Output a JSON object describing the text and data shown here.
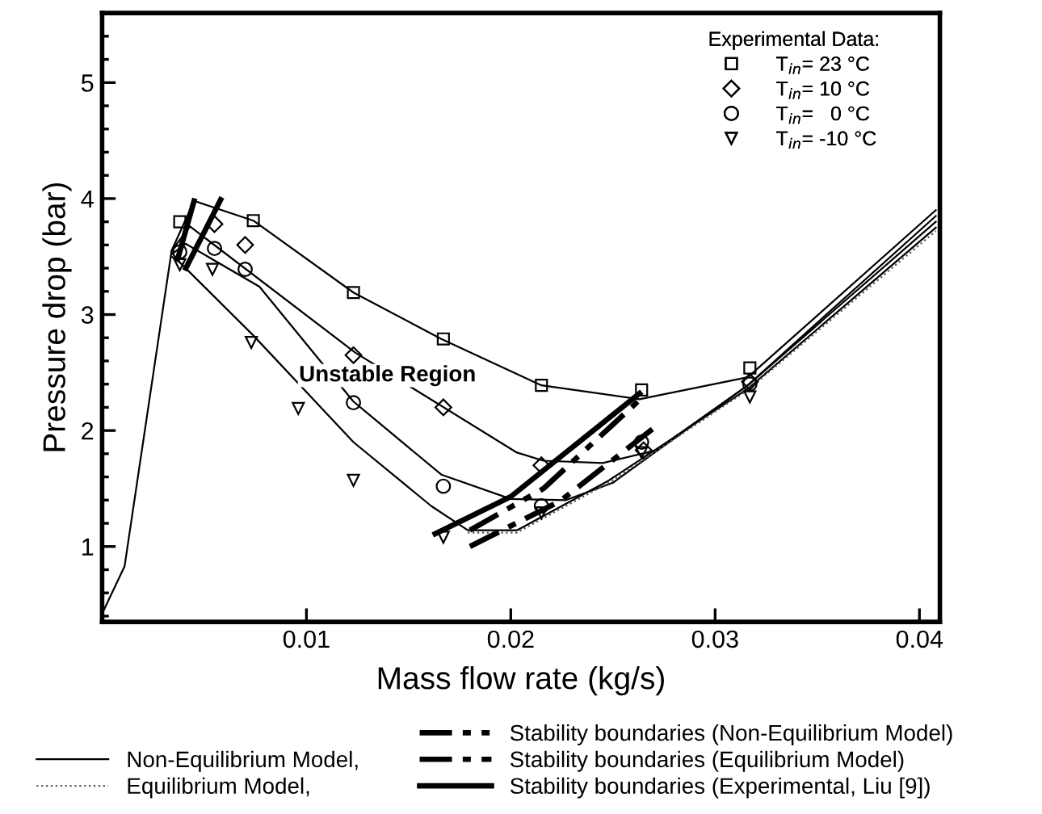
{
  "chart_data": {
    "type": "line",
    "xlabel": "Mass flow rate (kg/s)",
    "ylabel": "Pressure drop (bar)",
    "legend_title": "Experimental Data:",
    "xlim": [
      0,
      0.041
    ],
    "ylim": [
      0.35,
      5.6
    ],
    "xticks": [
      0.01,
      0.02,
      0.03,
      0.04
    ],
    "yticks": [
      {
        "value": 0.4,
        "label": null
      },
      {
        "value": 0.6,
        "label": null
      },
      {
        "value": 0.8,
        "label": null
      },
      1,
      {
        "value": 1.2,
        "label": null
      },
      {
        "value": 1.4,
        "label": null
      },
      {
        "value": 1.6,
        "label": null
      },
      {
        "value": 1.8,
        "label": null
      },
      2,
      {
        "value": 2.2,
        "label": null
      },
      {
        "value": 2.4,
        "label": null
      },
      {
        "value": 2.6,
        "label": null
      },
      {
        "value": 2.8,
        "label": null
      },
      3,
      {
        "value": 3.2,
        "label": null
      },
      {
        "value": 3.4,
        "label": null
      },
      {
        "value": 3.6,
        "label": null
      },
      {
        "value": 3.8,
        "label": null
      },
      4,
      {
        "value": 4.2,
        "label": null
      },
      {
        "value": 4.4,
        "label": null
      },
      {
        "value": 4.6,
        "label": null
      },
      {
        "value": 4.8,
        "label": null
      },
      5,
      {
        "value": 5.2,
        "label": null
      },
      {
        "value": 5.4,
        "label": null
      }
    ],
    "grid": false,
    "legend": "bottom",
    "annotations": [
      "Unstable Region"
    ],
    "series": [
      {
        "name": "Non-Equilibrium Model,",
        "type": "line",
        "line_style": "solid",
        "color": "#000000",
        "x": [
          0,
          0.0011,
          0.0034,
          0.0045,
          0.0074,
          0.0123,
          0.0166,
          0.0215,
          0.0263,
          0.0316,
          0.0408
        ],
        "values": [
          0.42,
          0.83,
          3.55,
          3.98,
          3.81,
          3.19,
          2.79,
          2.39,
          2.27,
          2.46,
          3.9
        ]
      },
      {
        "type": "line",
        "line_style": "solid",
        "color": "#000000",
        "x": [
          0.0034,
          0.0043,
          0.0124,
          0.0203,
          0.0216,
          0.0245,
          0.0271,
          0.0316,
          0.0408
        ],
        "values": [
          3.55,
          3.76,
          2.67,
          1.81,
          1.74,
          1.72,
          1.83,
          2.39,
          3.85
        ]
      },
      {
        "type": "line",
        "line_style": "solid",
        "color": "#000000",
        "x": [
          0.0034,
          0.0041,
          0.0077,
          0.0123,
          0.0166,
          0.02,
          0.0227,
          0.025,
          0.0316,
          0.0408
        ],
        "values": [
          3.52,
          3.61,
          3.24,
          2.25,
          1.62,
          1.41,
          1.4,
          1.55,
          2.39,
          3.8
        ]
      },
      {
        "type": "line",
        "line_style": "solid",
        "color": "#000000",
        "x": [
          0.0034,
          0.0038,
          0.0074,
          0.0123,
          0.0161,
          0.0179,
          0.0203,
          0.0248,
          0.0316,
          0.0408
        ],
        "values": [
          3.5,
          3.45,
          2.82,
          1.9,
          1.35,
          1.14,
          1.14,
          1.57,
          2.36,
          3.75
        ]
      },
      {
        "name": "Equilibrium Model,",
        "type": "line",
        "line_style": "dotted",
        "color": "#555555",
        "x": [
          0.0179,
          0.0203,
          0.0248,
          0.0316,
          0.0408
        ],
        "values": [
          1.12,
          1.12,
          1.55,
          2.35,
          3.72
        ]
      },
      {
        "name": "Stability boundaries (Non-Equilibrium Model)",
        "type": "line",
        "line_style": "dashdotdot",
        "color": "#000000",
        "x": [
          0.018,
          0.0216,
          0.0264
        ],
        "values": [
          1.14,
          1.5,
          2.28
        ]
      },
      {
        "name": "Stability boundaries (Equilibrium Model)",
        "type": "line",
        "line_style": "dashdot",
        "color": "#000000",
        "x": [
          0.018,
          0.0224,
          0.0272
        ],
        "values": [
          1.0,
          1.39,
          2.05
        ]
      },
      {
        "name": "Stability boundaries (Experimental, Liu [9])",
        "type": "line",
        "line_style": "solid",
        "color": "#000000",
        "x": [
          0.0037,
          0.0045,
          null,
          0.0041,
          0.0058,
          null,
          0.0163,
          0.02,
          0.0263
        ],
        "values": [
          3.48,
          3.98,
          null,
          3.4,
          3.99,
          null,
          1.11,
          1.43,
          2.32
        ]
      },
      {
        "name": "T$_{in}$= 23 °C",
        "type": "scatter",
        "marker": "square",
        "color": "#000000",
        "x": [
          0.0038,
          0.0074,
          0.0123,
          0.0167,
          0.0215,
          0.0264,
          0.0317
        ],
        "values": [
          3.8,
          3.81,
          3.19,
          2.79,
          2.39,
          2.35,
          2.54
        ]
      },
      {
        "name": "T$_{in}$= 10 °C",
        "type": "scatter",
        "marker": "diamond",
        "color": "#000000",
        "x": [
          0.0055,
          0.007,
          0.0123,
          0.0167,
          0.0215,
          0.0265,
          0.0317
        ],
        "values": [
          3.78,
          3.6,
          2.65,
          2.2,
          1.7,
          1.83,
          2.42
        ]
      },
      {
        "name": "T$_{in}$=   0 °C",
        "type": "scatter",
        "marker": "circle",
        "color": "#000000",
        "x": [
          0.0038,
          0.0055,
          0.007,
          0.0123,
          0.0167,
          0.0215,
          0.0264,
          0.0317
        ],
        "values": [
          3.54,
          3.57,
          3.39,
          2.24,
          1.52,
          1.35,
          1.9,
          2.4
        ]
      },
      {
        "name": "T$_{in}$= -10 °C",
        "type": "scatter",
        "marker": "triangle",
        "color": "#000000",
        "x": [
          0.0038,
          0.0054,
          0.0073,
          0.0096,
          0.0123,
          0.0167,
          0.0215,
          0.0264,
          0.0317
        ],
        "values": [
          3.43,
          3.39,
          2.76,
          2.19,
          1.57,
          1.08,
          1.29,
          1.81,
          2.29
        ]
      }
    ]
  }
}
